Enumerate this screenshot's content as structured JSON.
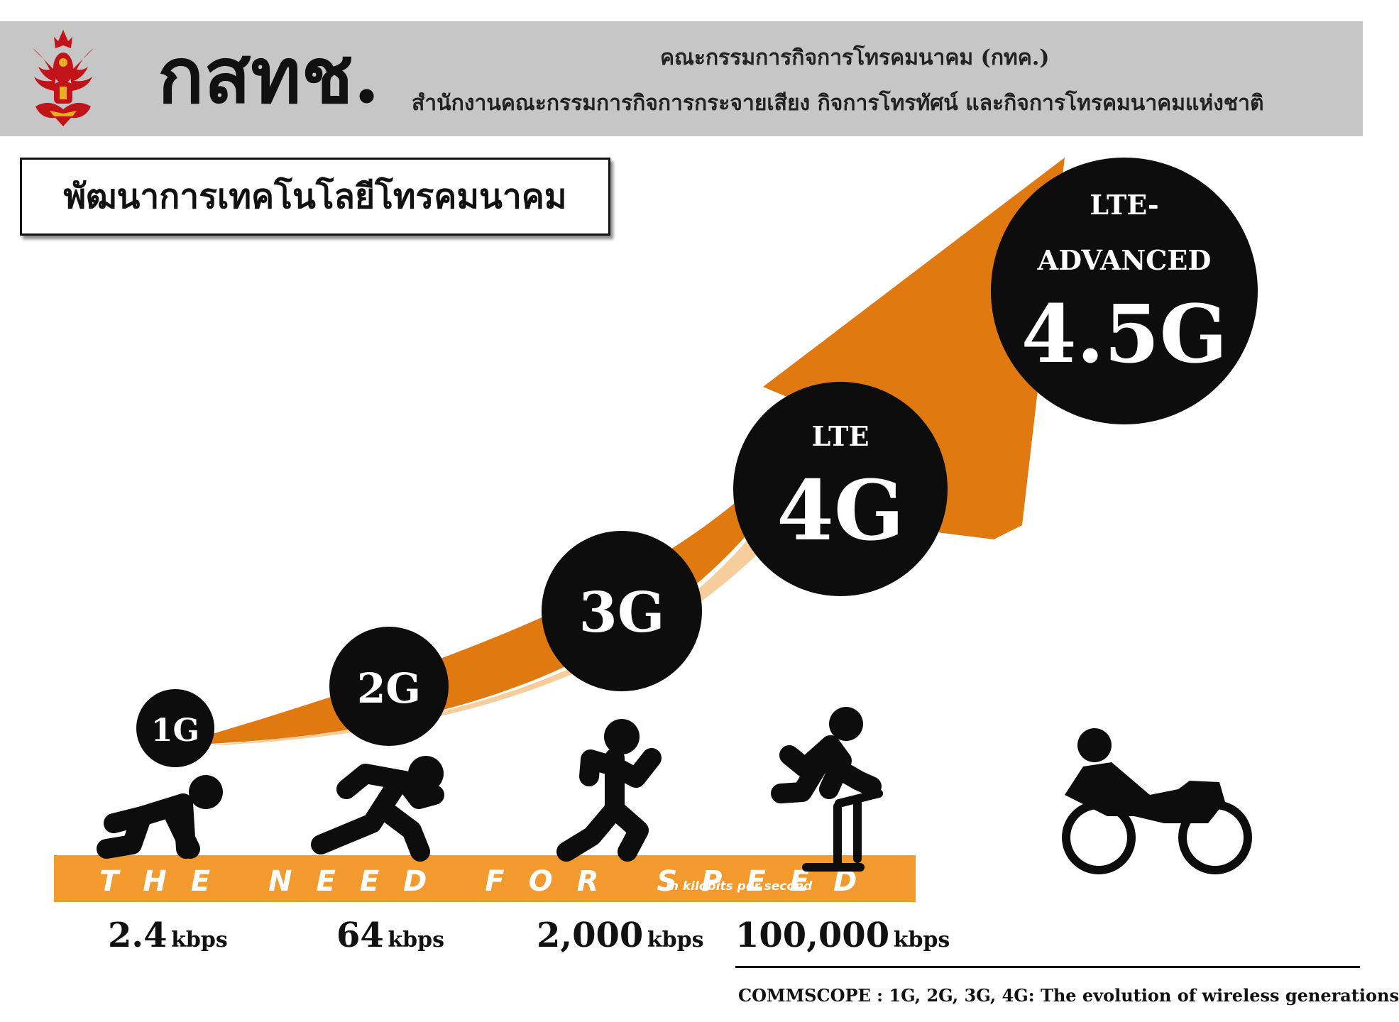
{
  "header": {
    "abbr": "กสทช.",
    "line1": "คณะกรรมการกิจการโทรคมนาคม (กทค.)",
    "line2": "สำนักงานคณะกรรมการกิจการกระจายเสียง กิจการโทรทัศน์ และกิจการโทรคมนาคมแห่งชาติ",
    "emblem_icon": "garuda-emblem-icon"
  },
  "title": "พัฒนาการเทคโนโลยีโทรคมนาคม",
  "colors": {
    "arrow": "#e07a10",
    "banner": "#f39a2e",
    "circle": "#0d0d0d",
    "header_bg": "#c6c6c6"
  },
  "generations": [
    {
      "sub": "",
      "label": "1G"
    },
    {
      "sub": "",
      "label": "2G"
    },
    {
      "sub": "",
      "label": "3G"
    },
    {
      "sub": "LTE",
      "label": "4G"
    },
    {
      "sub1": "LTE-",
      "sub2": "ADVANCED",
      "label": "4.5G"
    }
  ],
  "banner": {
    "text": "THE NEED FOR SPEED",
    "subtext": "in kilobits per second"
  },
  "speeds": [
    {
      "value": "2.4",
      "unit": "kbps",
      "icon": "crawling-person-icon"
    },
    {
      "value": "64",
      "unit": "kbps",
      "icon": "walking-person-icon"
    },
    {
      "value": "2,000",
      "unit": "kbps",
      "icon": "running-person-icon"
    },
    {
      "value": "100,000",
      "unit": "kbps",
      "icon": "hurdling-person-icon"
    }
  ],
  "vehicle_icon": "motorcycle-icon",
  "source": "COMMSCOPE : 1G, 2G, 3G, 4G: The evolution of wireless generations"
}
